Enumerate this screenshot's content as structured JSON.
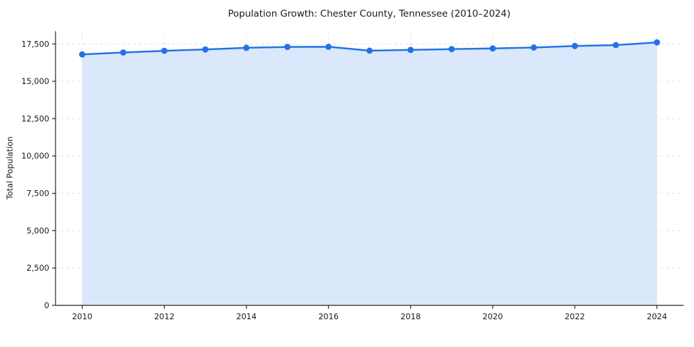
{
  "chart": {
    "title": "Population Growth: Chester County, Tennessee (2010–2024)",
    "ylabel": "Total Population"
  },
  "chart_data": {
    "type": "line",
    "title": "Population Growth: Chester County, Tennessee (2010–2024)",
    "xlabel": "",
    "ylabel": "Total Population",
    "x": [
      2010,
      2011,
      2012,
      2013,
      2014,
      2015,
      2016,
      2017,
      2018,
      2019,
      2020,
      2021,
      2022,
      2023,
      2024
    ],
    "values": [
      16800,
      16930,
      17040,
      17130,
      17240,
      17300,
      17310,
      17050,
      17100,
      17150,
      17200,
      17260,
      17360,
      17420,
      17600
    ],
    "xticks": [
      2010,
      2012,
      2014,
      2016,
      2018,
      2020,
      2022,
      2024
    ],
    "yticks": [
      0,
      2500,
      5000,
      7500,
      10000,
      12500,
      15000,
      17500
    ],
    "xlim": [
      2009.35,
      2024.65
    ],
    "ylim": [
      0,
      18350
    ],
    "grid": true,
    "grid_style": "dashed",
    "legend": "none",
    "line_color": "#2273e6",
    "fill_color": "#dbe8fb",
    "marker": "circle",
    "grid_color": "#e3e3e3",
    "spine_color": "#262626"
  }
}
